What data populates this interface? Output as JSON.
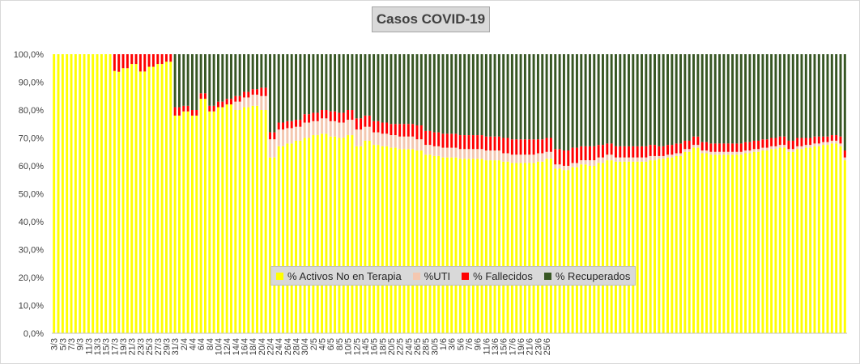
{
  "chart_data": {
    "type": "bar",
    "stacked": "percent",
    "title": "Casos COVID-19",
    "xlabel": "",
    "ylabel": "",
    "ylim": [
      0,
      100
    ],
    "yticks": [
      "0,0%",
      "10,0%",
      "20,0%",
      "30,0%",
      "40,0%",
      "50,0%",
      "60,0%",
      "70,0%",
      "80,0%",
      "90,0%",
      "100,0%"
    ],
    "x_tick_labels": [
      "3/3",
      "5/3",
      "7/3",
      "9/3",
      "11/3",
      "13/3",
      "15/3",
      "17/3",
      "19/3",
      "21/3",
      "23/3",
      "25/3",
      "27/3",
      "29/3",
      "31/3",
      "2/4",
      "4/4",
      "6/4",
      "8/4",
      "10/4",
      "12/4",
      "14/4",
      "16/4",
      "18/4",
      "20/4",
      "22/4",
      "24/4",
      "26/4",
      "28/4",
      "30/4",
      "2/5",
      "4/5",
      "6/5",
      "8/5",
      "10/5",
      "12/5",
      "14/5",
      "16/5",
      "18/5",
      "20/5",
      "22/5",
      "24/5",
      "26/5",
      "28/5",
      "30/5",
      "1/6",
      "3/6",
      "5/6",
      "7/6",
      "9/6",
      "11/6",
      "13/6",
      "15/6",
      "17/6",
      "19/6",
      "21/6",
      "23/6",
      "25/6"
    ],
    "legend_position": "bottom-center",
    "grid": false,
    "series": [
      {
        "name": "% Activos No en Terapia",
        "color": "#ffff00"
      },
      {
        "name": "%UTI",
        "color": "#f4c7b0"
      },
      {
        "name": "% Fallecidos",
        "color": "#ff0000"
      },
      {
        "name": "% Recuperados",
        "color": "#375623"
      }
    ],
    "data": [
      [
        100,
        0,
        0,
        0
      ],
      [
        100,
        0,
        0,
        0
      ],
      [
        100,
        0,
        0,
        0
      ],
      [
        100,
        0,
        0,
        0
      ],
      [
        100,
        0,
        0,
        0
      ],
      [
        100,
        0,
        0,
        0
      ],
      [
        100,
        0,
        0,
        0
      ],
      [
        100,
        0,
        0,
        0
      ],
      [
        100,
        0,
        0,
        0
      ],
      [
        100,
        0,
        0,
        0
      ],
      [
        100,
        0,
        0,
        0
      ],
      [
        100,
        0,
        0,
        0
      ],
      [
        100,
        0,
        0,
        0
      ],
      [
        100,
        0,
        0,
        0
      ],
      [
        94,
        0,
        6,
        0
      ],
      [
        93.7,
        0,
        6.3,
        0
      ],
      [
        95,
        0,
        5,
        0
      ],
      [
        95,
        0,
        5,
        0
      ],
      [
        96.5,
        0,
        3.5,
        0
      ],
      [
        96.5,
        0,
        3.5,
        0
      ],
      [
        93.8,
        0,
        6.2,
        0
      ],
      [
        93.8,
        0,
        6.2,
        0
      ],
      [
        95.5,
        0,
        4.5,
        0
      ],
      [
        95.5,
        0,
        4.5,
        0
      ],
      [
        96.5,
        0,
        3.5,
        0
      ],
      [
        96.5,
        0,
        3.5,
        0
      ],
      [
        97.3,
        0,
        2.7,
        0
      ],
      [
        97.3,
        0,
        2.7,
        0
      ],
      [
        78,
        0,
        3,
        19
      ],
      [
        78,
        0,
        3,
        19
      ],
      [
        79.5,
        0,
        2,
        18.5
      ],
      [
        79.5,
        0,
        2,
        18.5
      ],
      [
        78,
        0,
        2,
        20
      ],
      [
        78,
        0,
        2,
        20
      ],
      [
        84,
        0,
        2,
        14
      ],
      [
        84,
        0,
        2,
        14
      ],
      [
        79.5,
        0,
        2,
        18.5
      ],
      [
        79.5,
        0,
        2,
        18.5
      ],
      [
        81,
        0,
        2,
        17
      ],
      [
        81,
        0,
        2,
        17
      ],
      [
        82,
        0,
        2,
        16
      ],
      [
        82,
        0,
        2,
        16
      ],
      [
        80,
        3,
        2,
        15
      ],
      [
        80,
        3,
        2,
        15
      ],
      [
        81,
        3.5,
        2,
        13.5
      ],
      [
        81,
        3.5,
        2,
        13.5
      ],
      [
        81.5,
        4,
        2,
        12.5
      ],
      [
        81.5,
        4,
        2,
        12.5
      ],
      [
        80,
        5,
        3,
        12
      ],
      [
        80,
        5,
        3,
        12
      ],
      [
        63,
        6.5,
        2.5,
        28
      ],
      [
        63,
        6.5,
        2.5,
        28
      ],
      [
        67,
        6,
        2.5,
        24.5
      ],
      [
        67,
        6,
        2.5,
        24.5
      ],
      [
        68,
        5.5,
        2.5,
        24
      ],
      [
        68,
        5.5,
        2.5,
        24
      ],
      [
        69,
        5,
        2.5,
        23.5
      ],
      [
        69,
        5,
        2.5,
        23.5
      ],
      [
        70,
        5.5,
        3,
        21.5
      ],
      [
        70,
        5.5,
        3,
        21.5
      ],
      [
        71,
        5,
        3,
        21
      ],
      [
        71,
        5,
        3,
        21
      ],
      [
        71.5,
        5.5,
        3,
        20
      ],
      [
        71.5,
        5.5,
        3,
        20
      ],
      [
        70.5,
        5.5,
        3.5,
        20.5
      ],
      [
        70.5,
        5.5,
        3.5,
        20.5
      ],
      [
        70,
        5.5,
        3.5,
        21
      ],
      [
        70,
        5.5,
        3.5,
        21
      ],
      [
        71,
        5.5,
        3.5,
        20
      ],
      [
        71,
        5.5,
        3.5,
        20
      ],
      [
        67,
        6,
        4,
        23
      ],
      [
        67,
        6,
        4,
        23
      ],
      [
        69,
        5,
        4,
        22
      ],
      [
        69,
        5,
        4,
        22
      ],
      [
        67.5,
        4.5,
        4,
        24
      ],
      [
        67.5,
        4.5,
        4,
        24
      ],
      [
        67,
        4.5,
        4,
        24.5
      ],
      [
        67,
        4.5,
        4,
        24.5
      ],
      [
        66.5,
        4.5,
        4,
        25
      ],
      [
        66.5,
        4.5,
        4,
        25
      ],
      [
        66,
        4.5,
        4.5,
        25
      ],
      [
        66,
        4.5,
        4.5,
        25
      ],
      [
        66,
        4.5,
        4.5,
        25
      ],
      [
        66,
        4.5,
        4.5,
        25
      ],
      [
        65.5,
        4,
        5,
        25.5
      ],
      [
        65.5,
        4,
        5,
        25.5
      ],
      [
        64,
        3.5,
        5,
        27.5
      ],
      [
        64,
        3.5,
        5,
        27.5
      ],
      [
        63.5,
        3.5,
        5,
        28
      ],
      [
        63.5,
        3.5,
        5,
        28
      ],
      [
        63,
        3.5,
        5,
        28.5
      ],
      [
        63,
        3.5,
        5,
        28.5
      ],
      [
        63,
        3.5,
        5,
        28.5
      ],
      [
        63,
        3.5,
        5,
        28.5
      ],
      [
        62.5,
        3.5,
        5,
        29
      ],
      [
        62.5,
        3.5,
        5,
        29
      ],
      [
        62.5,
        3.5,
        5,
        29
      ],
      [
        62.5,
        3.5,
        5,
        29
      ],
      [
        62.5,
        3.5,
        5,
        29
      ],
      [
        62.5,
        3.5,
        5,
        29
      ],
      [
        62,
        3.5,
        5,
        29.5
      ],
      [
        62,
        3.5,
        5,
        29.5
      ],
      [
        62,
        3.5,
        5,
        29.5
      ],
      [
        62,
        3.5,
        5,
        29.5
      ],
      [
        61.5,
        3,
        5.5,
        30
      ],
      [
        61.5,
        3,
        5.5,
        30
      ],
      [
        61,
        3,
        5.5,
        30.5
      ],
      [
        61,
        3,
        5.5,
        30.5
      ],
      [
        61,
        3,
        5.5,
        30.5
      ],
      [
        61,
        3,
        5.5,
        30.5
      ],
      [
        61,
        3,
        5.5,
        30.5
      ],
      [
        61,
        3,
        5.5,
        30.5
      ],
      [
        61.5,
        3,
        5,
        30.5
      ],
      [
        61.5,
        3,
        5,
        30.5
      ],
      [
        62.5,
        2.5,
        5,
        30
      ],
      [
        62.5,
        2.5,
        5,
        30
      ],
      [
        59,
        1.5,
        5.5,
        34
      ],
      [
        59,
        1.5,
        5.5,
        34
      ],
      [
        58.5,
        1.5,
        5.5,
        34.5
      ],
      [
        58.5,
        1.5,
        5.5,
        34.5
      ],
      [
        59.5,
        1.5,
        5.5,
        33.5
      ],
      [
        59.5,
        1.5,
        5.5,
        33.5
      ],
      [
        60.5,
        1.5,
        5,
        33
      ],
      [
        60.5,
        1.5,
        5,
        33
      ],
      [
        60,
        2,
        5,
        33
      ],
      [
        60,
        2,
        5,
        33
      ],
      [
        61,
        2,
        4.5,
        32.5
      ],
      [
        61,
        2,
        4.5,
        32.5
      ],
      [
        62,
        2,
        4,
        32
      ],
      [
        62,
        2,
        4,
        32
      ],
      [
        61.5,
        1.5,
        4,
        33
      ],
      [
        61.5,
        1.5,
        4,
        33
      ],
      [
        61.5,
        1.5,
        4,
        33
      ],
      [
        61.5,
        1.5,
        4,
        33
      ],
      [
        61.5,
        1.5,
        4,
        33
      ],
      [
        61.5,
        1.5,
        4,
        33
      ],
      [
        61.5,
        1.5,
        4,
        33
      ],
      [
        61.5,
        1.5,
        4,
        33
      ],
      [
        62,
        1.5,
        4,
        32.5
      ],
      [
        62,
        1.5,
        4,
        32.5
      ],
      [
        62.5,
        1,
        3.5,
        33
      ],
      [
        62.5,
        1,
        3.5,
        33
      ],
      [
        63,
        1,
        3.5,
        32.5
      ],
      [
        63,
        1,
        3.5,
        32.5
      ],
      [
        63.5,
        1,
        3.5,
        32
      ],
      [
        63.5,
        1,
        3.5,
        32
      ],
      [
        65,
        1,
        3,
        31
      ],
      [
        65,
        1,
        3,
        31
      ],
      [
        66.5,
        1,
        3,
        29.5
      ],
      [
        66.5,
        1,
        3,
        29.5
      ],
      [
        64.5,
        1,
        3,
        31.5
      ],
      [
        64.5,
        1,
        3,
        31.5
      ],
      [
        64,
        1,
        3,
        32
      ],
      [
        64,
        1,
        3,
        32
      ],
      [
        64,
        1,
        3,
        32
      ],
      [
        64,
        1,
        3,
        32
      ],
      [
        64,
        1,
        3,
        32
      ],
      [
        64,
        1,
        3,
        32
      ],
      [
        64,
        1,
        3,
        32
      ],
      [
        64,
        1,
        3,
        32
      ],
      [
        64.5,
        1,
        3,
        31.5
      ],
      [
        64.5,
        1,
        3,
        31.5
      ],
      [
        65,
        1,
        3,
        31
      ],
      [
        65,
        1,
        3,
        31
      ],
      [
        65.5,
        1,
        3,
        30.5
      ],
      [
        65.5,
        1,
        3,
        30.5
      ],
      [
        66,
        1,
        3,
        30
      ],
      [
        66,
        1,
        3,
        30
      ],
      [
        66.5,
        1,
        3,
        29.5
      ],
      [
        66.5,
        1,
        3,
        29.5
      ],
      [
        65,
        1,
        3,
        31
      ],
      [
        65,
        1,
        3,
        31
      ],
      [
        66,
        1,
        3,
        30
      ],
      [
        66,
        1,
        3,
        30
      ],
      [
        66.5,
        1,
        2.5,
        30
      ],
      [
        66.5,
        1,
        2.5,
        30
      ],
      [
        67,
        1,
        2.5,
        29.5
      ],
      [
        67,
        1,
        2.5,
        29.5
      ],
      [
        67.5,
        1,
        2,
        29.5
      ],
      [
        67.5,
        1,
        2,
        29.5
      ],
      [
        68,
        1,
        2,
        29
      ],
      [
        68,
        1,
        2,
        29
      ],
      [
        67,
        1,
        2.5,
        29.5
      ],
      [
        62,
        1,
        2.5,
        34.5
      ]
    ]
  }
}
